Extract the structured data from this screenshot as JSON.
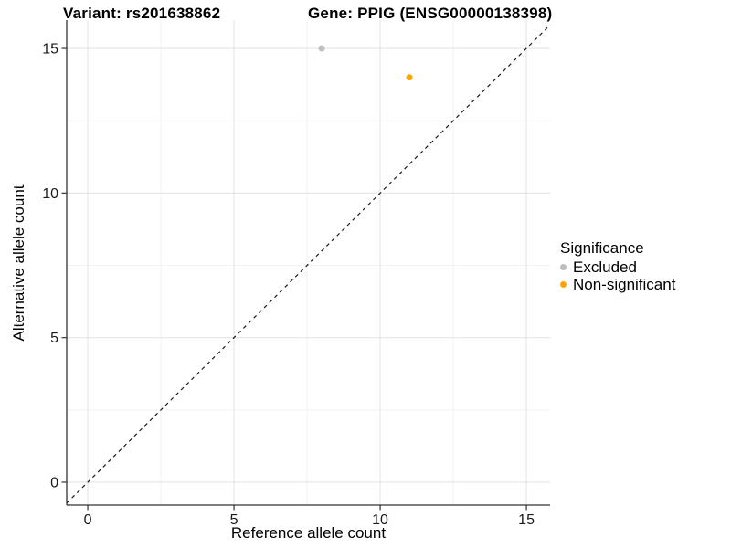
{
  "chart_data": {
    "type": "scatter",
    "title_left": "Variant: rs201638862",
    "title_right": "Gene: PPIG (ENSG00000138398)",
    "xlabel": "Reference allele count",
    "ylabel": "Alternative allele count",
    "xlim": [
      -0.72,
      15.81
    ],
    "ylim": [
      -0.79,
      15.98
    ],
    "xticks": [
      0,
      5,
      10,
      15
    ],
    "yticks": [
      0,
      5,
      10,
      15
    ],
    "minor_xticks": [
      2.5,
      7.5,
      12.5
    ],
    "minor_yticks": [
      2.5,
      7.5,
      12.5
    ],
    "grid": "major+minor",
    "identity_line": {
      "equation": "y = x",
      "style": "dashed",
      "color": "#1A1A1A"
    },
    "series": [
      {
        "name": "Excluded",
        "color": "#BEBEBE",
        "points": [
          {
            "x": 8,
            "y": 15
          }
        ]
      },
      {
        "name": "Non-significant",
        "color": "#FFA500",
        "points": [
          {
            "x": 11,
            "y": 14
          }
        ]
      }
    ],
    "legend": {
      "title": "Significance",
      "position": "right",
      "items": [
        {
          "label": "Excluded",
          "color": "#BEBEBE"
        },
        {
          "label": "Non-significant",
          "color": "#FFA500"
        }
      ]
    }
  },
  "style": {
    "background": "#FFFFFF",
    "grid_major": "#E5E5E5",
    "grid_minor": "#F2F2F2",
    "axis_line": "#333333",
    "tick_color": "#333333",
    "text_color": "#1A1A1A"
  }
}
